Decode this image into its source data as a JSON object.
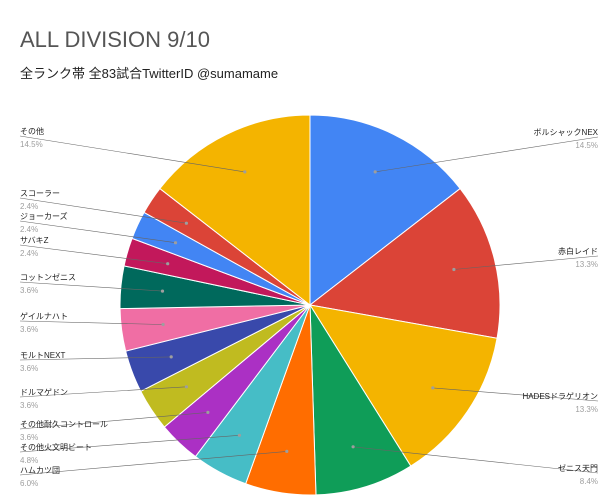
{
  "chart_data": {
    "type": "pie",
    "title": "ALL DIVISION 9/10",
    "subtitle": "全ランク帯 全83試合TwitterID @sumamame",
    "slices": [
      {
        "label": "ボルシャックNEX",
        "percent": "14.5%",
        "value": 14.5,
        "color": "#4285f4"
      },
      {
        "label": "赤白レイド",
        "percent": "13.3%",
        "value": 13.3,
        "color": "#db4437"
      },
      {
        "label": "HADESドラゲリオン",
        "percent": "13.3%",
        "value": 13.3,
        "color": "#f4b400"
      },
      {
        "label": "ゼニス天門",
        "percent": "8.4%",
        "value": 8.4,
        "color": "#0f9d58"
      },
      {
        "label": "ハムカツ団",
        "percent": "6.0%",
        "value": 6.0,
        "color": "#ff6d00"
      },
      {
        "label": "その他火文明ビート",
        "percent": "4.8%",
        "value": 4.8,
        "color": "#46bdc6"
      },
      {
        "label": "その他耐久コントロール",
        "percent": "3.6%",
        "value": 3.6,
        "color": "#ab30c4"
      },
      {
        "label": "ドルマゲドン",
        "percent": "3.6%",
        "value": 3.6,
        "color": "#c0bb20"
      },
      {
        "label": "モルトNEXT",
        "percent": "3.6%",
        "value": 3.6,
        "color": "#3949ab"
      },
      {
        "label": "ゲイルナハト",
        "percent": "3.6%",
        "value": 3.6,
        "color": "#f06ea4"
      },
      {
        "label": "コットンゼニス",
        "percent": "3.6%",
        "value": 3.6,
        "color": "#00695c"
      },
      {
        "label": "サバキZ",
        "percent": "2.4%",
        "value": 2.4,
        "color": "#c2185b"
      },
      {
        "label": "ジョーカーズ",
        "percent": "2.4%",
        "value": 2.4,
        "color": "#4285f4"
      },
      {
        "label": "スコーラー",
        "percent": "2.4%",
        "value": 2.4,
        "color": "#db4437"
      },
      {
        "label": "その他",
        "percent": "14.5%",
        "value": 14.5,
        "color": "#f4b400"
      }
    ],
    "legend": "none"
  }
}
